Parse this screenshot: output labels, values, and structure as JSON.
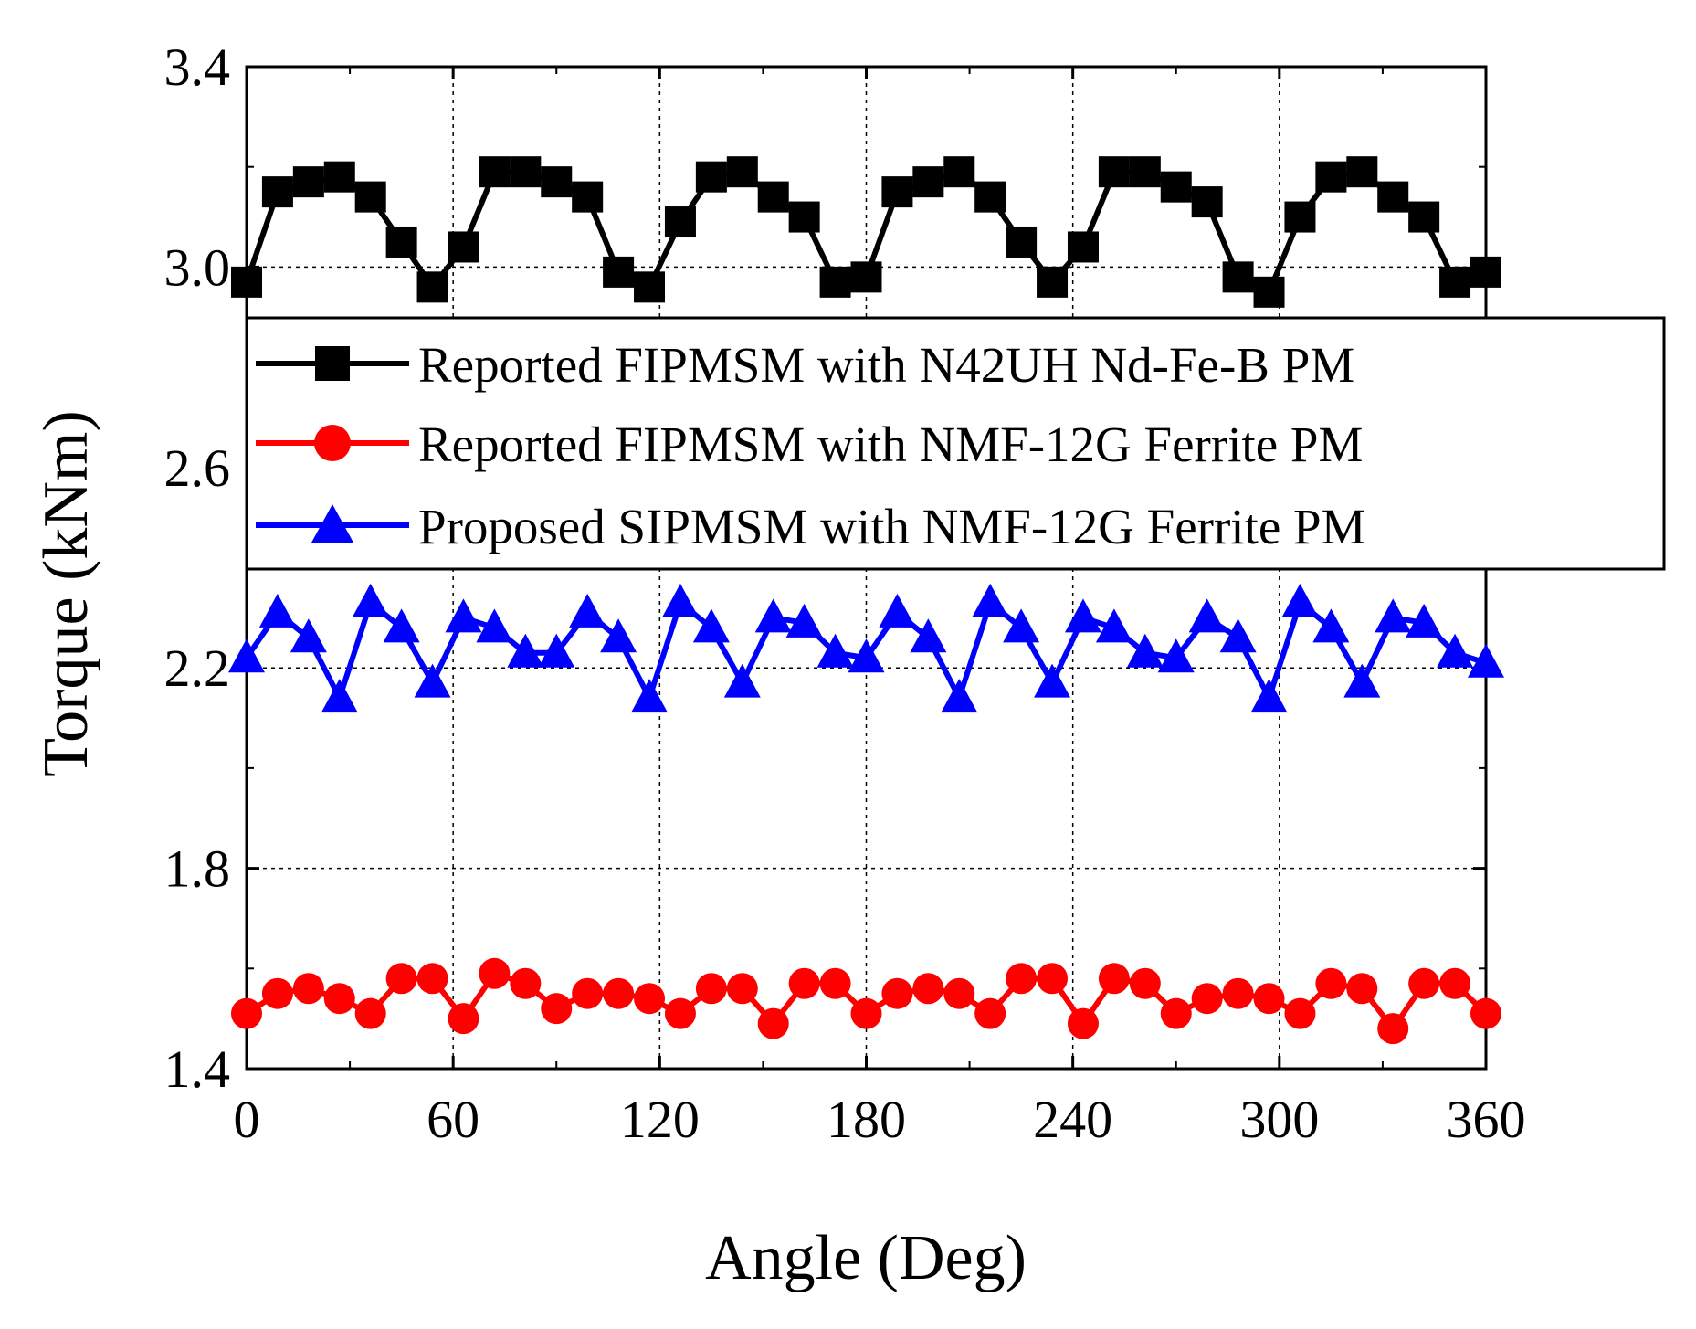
{
  "chart_data": {
    "type": "line",
    "title": "",
    "xlabel": "Angle (Deg)",
    "ylabel": "Torque (kNm)",
    "xlim": [
      0,
      360
    ],
    "ylim": [
      1.4,
      3.4
    ],
    "xticks": [
      0,
      60,
      120,
      180,
      240,
      300,
      360
    ],
    "yticks": [
      1.4,
      1.8,
      2.2,
      2.6,
      3.0,
      3.4
    ],
    "xtick_labels": [
      "0",
      "60",
      "120",
      "180",
      "240",
      "300",
      "360"
    ],
    "ytick_labels": [
      "1.4",
      "1.8",
      "2.2",
      "2.6",
      "3.0",
      "3.4"
    ],
    "grid": "dotted",
    "legend_position": "upper-middle",
    "x": [
      0,
      9,
      18,
      27,
      36,
      45,
      54,
      63,
      72,
      81,
      90,
      99,
      108,
      117,
      126,
      135,
      144,
      153,
      162,
      171,
      180,
      189,
      198,
      207,
      216,
      225,
      234,
      243,
      252,
      261,
      270,
      279,
      288,
      297,
      306,
      315,
      324,
      333,
      342,
      351,
      360
    ],
    "series": [
      {
        "name": "Reported FIPMSM with N42UH Nd-Fe-B PM",
        "color": "#000000",
        "marker": "square",
        "values": [
          2.97,
          3.15,
          3.17,
          3.18,
          3.14,
          3.05,
          2.96,
          3.04,
          3.19,
          3.19,
          3.17,
          3.14,
          2.99,
          2.96,
          3.09,
          3.18,
          3.19,
          3.14,
          3.1,
          2.97,
          2.98,
          3.15,
          3.17,
          3.19,
          3.14,
          3.05,
          2.97,
          3.04,
          3.19,
          3.19,
          3.16,
          3.13,
          2.98,
          2.95,
          3.1,
          3.18,
          3.19,
          3.14,
          3.1,
          2.97,
          2.99
        ]
      },
      {
        "name": "Reported FIPMSM with NMF-12G Ferrite PM",
        "color": "#ff0000",
        "marker": "circle",
        "values": [
          1.51,
          1.55,
          1.56,
          1.54,
          1.51,
          1.58,
          1.58,
          1.5,
          1.59,
          1.57,
          1.52,
          1.55,
          1.55,
          1.54,
          1.51,
          1.56,
          1.56,
          1.49,
          1.57,
          1.57,
          1.51,
          1.55,
          1.56,
          1.55,
          1.51,
          1.58,
          1.58,
          1.49,
          1.58,
          1.57,
          1.51,
          1.54,
          1.55,
          1.54,
          1.51,
          1.57,
          1.56,
          1.48,
          1.57,
          1.57,
          1.51
        ]
      },
      {
        "name": "Proposed SIPMSM with NMF-12G Ferrite PM",
        "color": "#0000ff",
        "marker": "triangle",
        "values": [
          2.22,
          2.31,
          2.26,
          2.14,
          2.33,
          2.28,
          2.17,
          2.3,
          2.28,
          2.23,
          2.23,
          2.31,
          2.26,
          2.14,
          2.33,
          2.28,
          2.17,
          2.3,
          2.29,
          2.23,
          2.22,
          2.31,
          2.26,
          2.14,
          2.33,
          2.28,
          2.17,
          2.3,
          2.28,
          2.23,
          2.22,
          2.3,
          2.26,
          2.14,
          2.33,
          2.28,
          2.17,
          2.3,
          2.29,
          2.23,
          2.21
        ]
      }
    ]
  }
}
